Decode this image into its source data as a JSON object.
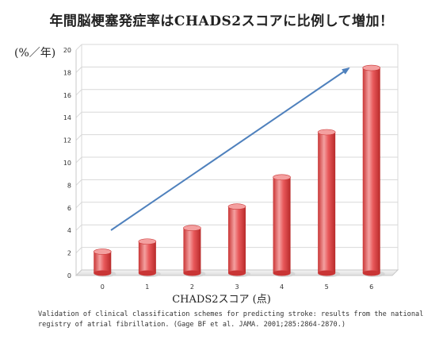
{
  "title": "年間脳梗塞発症率はCHADS2スコアに比例して増加！",
  "unit_label": "(%／年)",
  "source_text": "Validation of clinical classification schemes for predicting stroke: results from the national registry of atrial fibrillation. (Gage BF et al. JAMA. 2001;285:2864-2870.)",
  "colors": {
    "bar": "#e8585a",
    "bar_light": "#f4a0a0",
    "bar_dark": "#c93535",
    "arrow": "#4f81bd",
    "grid": "#d8d8d8"
  },
  "chart_data": {
    "type": "bar",
    "title": "年間脳梗塞発症率はCHADS2スコアに比例して増加！",
    "xlabel": "CHADS2スコア (点)",
    "ylabel": "(%／年)",
    "categories": [
      "0",
      "1",
      "2",
      "3",
      "4",
      "5",
      "6"
    ],
    "values": [
      1.9,
      2.8,
      4.0,
      5.9,
      8.5,
      12.5,
      18.2
    ],
    "ylim": [
      0,
      20
    ],
    "yticks": [
      "0",
      "2",
      "4",
      "6",
      "8",
      "10",
      "12",
      "14",
      "16",
      "18",
      "20"
    ],
    "grid": true,
    "annotation": "upward trend arrow"
  }
}
